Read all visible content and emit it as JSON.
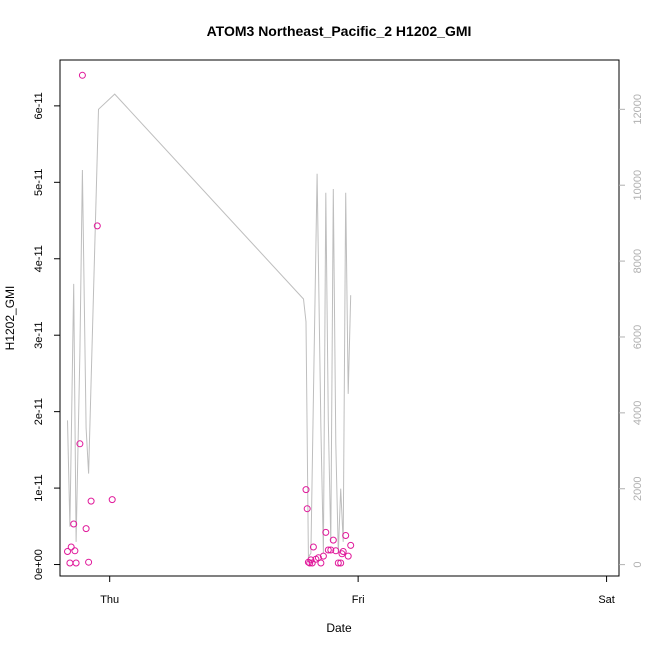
{
  "chart_data": {
    "type": "scatter",
    "title": "ATOM3 Northeast_Pacific_2 H1202_GMI",
    "xlabel": "Date",
    "ylabel": "H1202_GMI",
    "x_tick_labels": [
      "Thu",
      "Fri",
      "Sat"
    ],
    "x_tick_positions_days": [
      0,
      1,
      2
    ],
    "xlim_days": [
      -0.2,
      2.05
    ],
    "y_left": {
      "range": [
        -1.5e-12,
        6.6e-11
      ],
      "ticks": [
        0,
        1e-11,
        2e-11,
        3e-11,
        4e-11,
        5e-11,
        6e-11
      ],
      "tick_labels": [
        "0e+00",
        "1e-11",
        "2e-11",
        "3e-11",
        "4e-11",
        "5e-11",
        "6e-11"
      ]
    },
    "y_right": {
      "range": [
        -300,
        13300
      ],
      "ticks": [
        0,
        2000,
        4000,
        6000,
        8000,
        10000,
        12000
      ],
      "tick_labels": [
        "0",
        "2000",
        "4000",
        "6000",
        "8000",
        "10000",
        "12000"
      ]
    },
    "grid": false,
    "series": [
      {
        "kind": "points",
        "axis": "left",
        "color": "#e0189a",
        "x": [
          -0.17,
          -0.16,
          -0.155,
          -0.145,
          -0.14,
          -0.135,
          -0.12,
          -0.11,
          -0.095,
          -0.085,
          -0.075,
          -0.05,
          0.01,
          0.79,
          0.795,
          0.8,
          0.805,
          0.81,
          0.815,
          0.82,
          0.83,
          0.84,
          0.85,
          0.86,
          0.87,
          0.88,
          0.89,
          0.9,
          0.91,
          0.92,
          0.93,
          0.935,
          0.94,
          0.95,
          0.96,
          0.97
        ],
        "y": [
          1.7e-12,
          2e-13,
          2.3e-12,
          5.3e-12,
          1.8e-12,
          2e-13,
          1.58e-11,
          6.4e-11,
          4.7e-12,
          3e-13,
          8.3e-12,
          4.43e-11,
          8.5e-12,
          9.8e-12,
          7.3e-12,
          3e-13,
          2e-13,
          6e-13,
          2e-13,
          2.3e-12,
          7e-13,
          9e-13,
          2e-13,
          1.1e-12,
          4.2e-12,
          1.9e-12,
          1.9e-12,
          3.2e-12,
          1.8e-12,
          2e-13,
          2e-13,
          1.4e-12,
          1.7e-12,
          3.8e-12,
          1.1e-12,
          2.5e-12
        ]
      },
      {
        "kind": "line",
        "axis": "right",
        "color": "#bebebe",
        "x": [
          -0.17,
          -0.16,
          -0.145,
          -0.135,
          -0.12,
          -0.11,
          -0.095,
          -0.085,
          -0.045,
          0.02,
          0.78,
          0.79,
          0.8,
          0.81,
          0.82,
          0.835,
          0.85,
          0.86,
          0.87,
          0.88,
          0.89,
          0.9,
          0.91,
          0.92,
          0.93,
          0.94,
          0.95,
          0.96,
          0.97
        ],
        "y": [
          3800,
          1000,
          7400,
          600,
          5600,
          10400,
          3600,
          2400,
          12000,
          12400,
          7000,
          6400,
          200,
          300,
          4400,
          10300,
          3600,
          300,
          9800,
          3800,
          600,
          9900,
          3200,
          300,
          2000,
          600,
          9800,
          4500,
          7100
        ]
      }
    ]
  }
}
